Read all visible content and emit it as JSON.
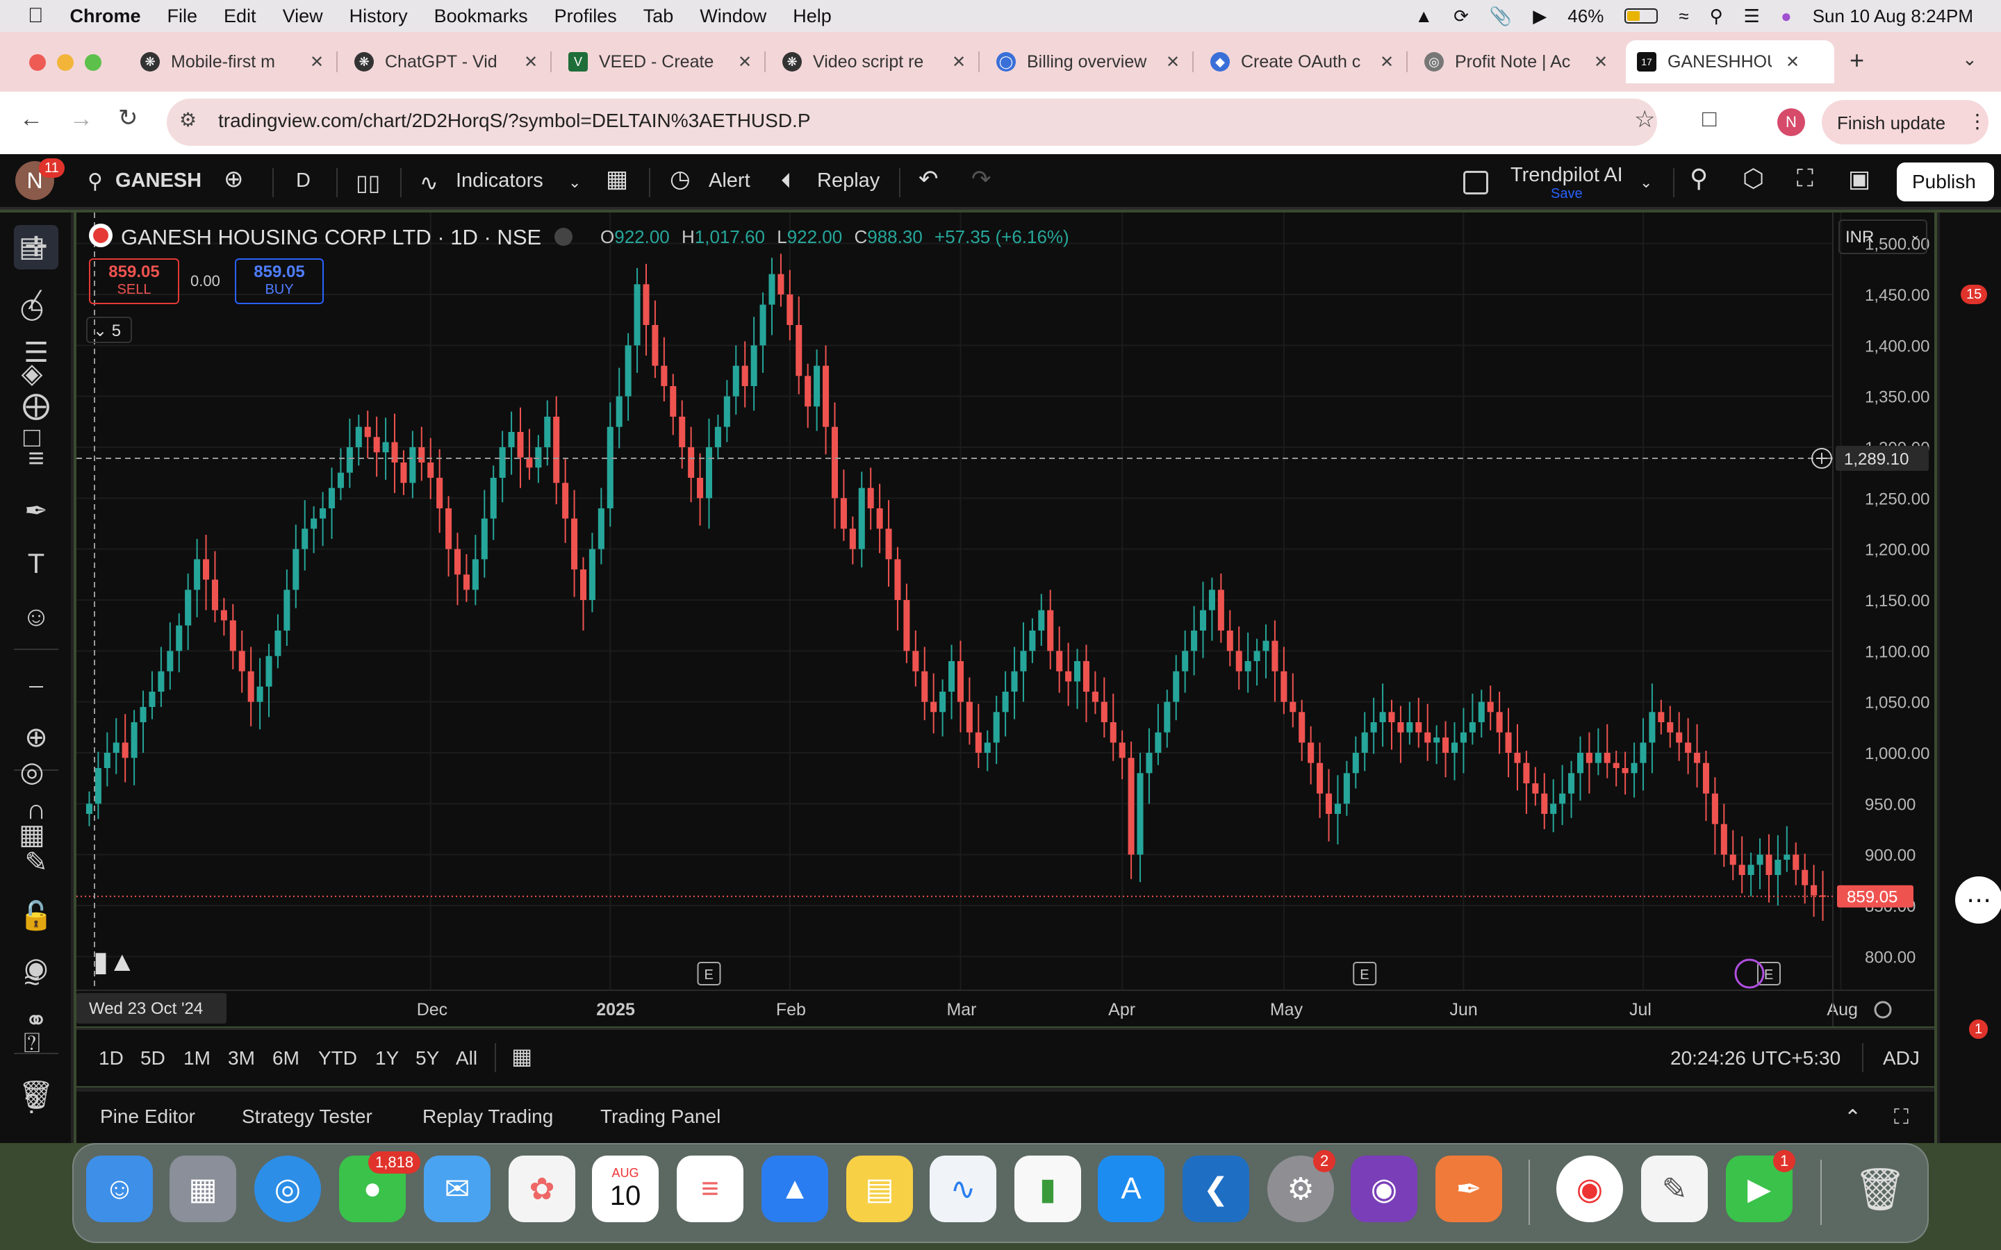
{
  "menubar": {
    "app": "Chrome",
    "items": [
      "File",
      "Edit",
      "View",
      "History",
      "Bookmarks",
      "Profiles",
      "Tab",
      "Window",
      "Help"
    ],
    "battery": "46%",
    "datetime": "Sun 10 Aug  8:24PM"
  },
  "tabs": [
    {
      "title": "Mobile-first m",
      "icon": "openai-icon",
      "color": "#333"
    },
    {
      "title": "ChatGPT - Vid",
      "icon": "openai-icon",
      "color": "#333"
    },
    {
      "title": "VEED - Create",
      "icon": "veed-icon",
      "color": "#1f6e3a"
    },
    {
      "title": "Video script re",
      "icon": "openai-icon",
      "color": "#333"
    },
    {
      "title": "Billing overview",
      "icon": "billing-icon",
      "color": "#3a6fd8"
    },
    {
      "title": "Create OAuth c",
      "icon": "shield-icon",
      "color": "#3a6fd8"
    },
    {
      "title": "Profit Note | Ac",
      "icon": "globe-icon",
      "color": "#666"
    },
    {
      "title": "GANESHHOUC",
      "icon": "tradingview-icon",
      "color": "#111",
      "active": true
    }
  ],
  "toolbar": {
    "url": "tradingview.com/chart/2D2HorqS/?symbol=DELTAIN%3AETHUSD.P",
    "profile_initial": "N",
    "finish_update": "Finish update"
  },
  "tv": {
    "avatar_initial": "N",
    "avatar_badge": "11",
    "symbol": "GANESH",
    "interval": "D",
    "indicators": "Indicators",
    "alert": "Alert",
    "replay": "Replay",
    "trendpilot": "Trendpilot AI",
    "trendpilot_sub": "Save",
    "publish": "Publish",
    "currency": "INR"
  },
  "legend": {
    "title": "GANESH HOUSING CORP LTD · 1D · NSE",
    "o_label": "O",
    "o": "922.00",
    "h_label": "H",
    "h": "1,017.60",
    "l_label": "L",
    "l": "922.00",
    "c_label": "C",
    "c": "988.30",
    "change": "+57.35 (+6.16%)",
    "sell_price": "859.05",
    "sell_label": "SELL",
    "spread": "0.00",
    "buy_price": "859.05",
    "buy_label": "BUY",
    "collapse_count": "5"
  },
  "chart_data": {
    "type": "candlestick",
    "ylim": [
      775,
      1525
    ],
    "y_ticks": [
      "1,500.00",
      "1,450.00",
      "1,400.00",
      "1,350.00",
      "1,300.00",
      "1,250.00",
      "1,200.00",
      "1,150.00",
      "1,100.00",
      "1,050.00",
      "1,000.00",
      "950.00",
      "900.00",
      "850.00",
      "800.00"
    ],
    "x_labels": [
      {
        "t": "Dec",
        "i": 38
      },
      {
        "t": "2025",
        "i": 58
      },
      {
        "t": "Feb",
        "i": 78
      },
      {
        "t": "Mar",
        "i": 97
      },
      {
        "t": "Apr",
        "i": 115
      },
      {
        "t": "May",
        "i": 133
      },
      {
        "t": "Jun",
        "i": 153
      },
      {
        "t": "Jul",
        "i": 173
      },
      {
        "t": "Aug",
        "i": 195
      }
    ],
    "earnings": [
      {
        "i": 69
      },
      {
        "i": 142
      },
      {
        "i": 187
      }
    ],
    "crosshair_price": "1,289.10",
    "crosshair_date": "Wed 23 Oct '24",
    "last_price": "859.05",
    "closes": [
      950,
      985,
      1000,
      1010,
      995,
      1030,
      1045,
      1060,
      1080,
      1100,
      1125,
      1160,
      1190,
      1170,
      1140,
      1130,
      1100,
      1080,
      1050,
      1065,
      1095,
      1120,
      1160,
      1200,
      1220,
      1230,
      1240,
      1260,
      1275,
      1300,
      1320,
      1310,
      1295,
      1305,
      1285,
      1265,
      1300,
      1285,
      1270,
      1240,
      1200,
      1175,
      1160,
      1190,
      1230,
      1270,
      1300,
      1315,
      1290,
      1280,
      1300,
      1330,
      1265,
      1230,
      1180,
      1150,
      1200,
      1240,
      1320,
      1350,
      1400,
      1460,
      1420,
      1380,
      1360,
      1330,
      1300,
      1270,
      1250,
      1300,
      1320,
      1350,
      1380,
      1360,
      1400,
      1440,
      1470,
      1450,
      1420,
      1370,
      1340,
      1380,
      1320,
      1250,
      1220,
      1200,
      1260,
      1240,
      1220,
      1190,
      1150,
      1100,
      1080,
      1050,
      1040,
      1060,
      1090,
      1050,
      1020,
      1000,
      1010,
      1040,
      1060,
      1080,
      1100,
      1120,
      1140,
      1100,
      1080,
      1070,
      1090,
      1060,
      1050,
      1030,
      1010,
      995,
      900,
      980,
      1000,
      1020,
      1050,
      1080,
      1100,
      1120,
      1140,
      1160,
      1120,
      1100,
      1080,
      1090,
      1100,
      1110,
      1080,
      1050,
      1040,
      1010,
      990,
      960,
      940,
      950,
      980,
      1000,
      1020,
      1030,
      1040,
      1030,
      1020,
      1030,
      1020,
      1010,
      1015,
      1000,
      1010,
      1020,
      1030,
      1050,
      1040,
      1020,
      1000,
      990,
      970,
      960,
      940,
      950,
      960,
      980,
      1000,
      990,
      1000,
      990,
      985,
      980,
      990,
      1010,
      1040,
      1030,
      1020,
      1010,
      1000,
      990,
      960,
      930,
      900,
      890,
      880,
      890,
      900,
      880,
      895,
      900,
      885,
      870,
      860,
      859
    ]
  },
  "ranges": [
    "1D",
    "5D",
    "1M",
    "3M",
    "6M",
    "YTD",
    "1Y",
    "5Y",
    "All"
  ],
  "clock": "20:24:26 UTC+5:30",
  "adj": "ADJ",
  "panels": [
    "Pine Editor",
    "Strategy Tester",
    "Replay Trading",
    "Trading Panel"
  ],
  "right_badge_15": "15",
  "right_badge_1": "1",
  "dock": {
    "messages_badge": "1,818",
    "calendar_month": "AUG",
    "calendar_day": "10",
    "settings_badge": "2",
    "facetime_badge": "1"
  }
}
